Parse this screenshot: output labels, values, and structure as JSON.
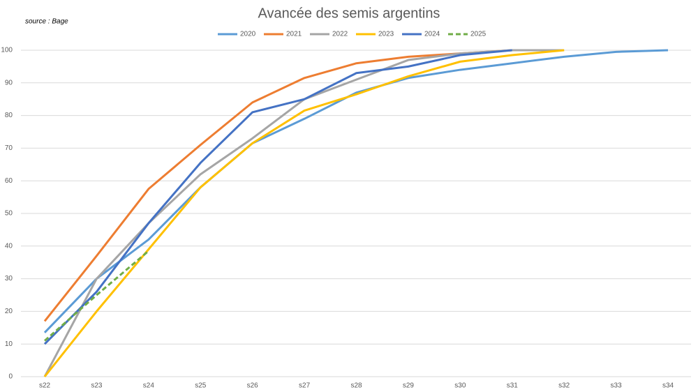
{
  "chart_data": {
    "type": "line",
    "title": "Avancée des semis argentins",
    "source": "source : Bage",
    "categories": [
      "s22",
      "s23",
      "s24",
      "s25",
      "s26",
      "s27",
      "s28",
      "s29",
      "s30",
      "s31",
      "s32",
      "s33",
      "s34"
    ],
    "series": [
      {
        "name": "2020",
        "color": "#5b9bd5",
        "values": [
          13.5,
          30,
          42,
          58,
          71.5,
          79,
          87,
          91.5,
          94,
          96,
          98,
          99.5,
          100
        ]
      },
      {
        "name": "2021",
        "color": "#ed7d31",
        "values": [
          17,
          37,
          57.5,
          71,
          84,
          91.5,
          96,
          98,
          99,
          100,
          null,
          null,
          null
        ]
      },
      {
        "name": "2022",
        "color": "#a5a5a5",
        "values": [
          0,
          30,
          47,
          62,
          73,
          85,
          91,
          97,
          99,
          100,
          100,
          null,
          null
        ]
      },
      {
        "name": "2023",
        "color": "#ffc000",
        "values": [
          0,
          20,
          39,
          58,
          71.5,
          81.5,
          86.5,
          92,
          96.5,
          98.5,
          100,
          null,
          null
        ]
      },
      {
        "name": "2024",
        "color": "#4472c4",
        "values": [
          10,
          26,
          47,
          65.5,
          81,
          85,
          93,
          95,
          98.5,
          100,
          null,
          null,
          null
        ]
      },
      {
        "name": "2025",
        "color": "#70ad47",
        "dashed": true,
        "values": [
          11,
          25,
          38.5,
          null,
          null,
          null,
          null,
          null,
          null,
          null,
          null,
          null,
          null
        ]
      }
    ],
    "ylim": [
      0,
      100
    ],
    "yticks": [
      0,
      10,
      20,
      30,
      40,
      50,
      60,
      70,
      80,
      90,
      100
    ],
    "grid": true,
    "legend": "top"
  }
}
